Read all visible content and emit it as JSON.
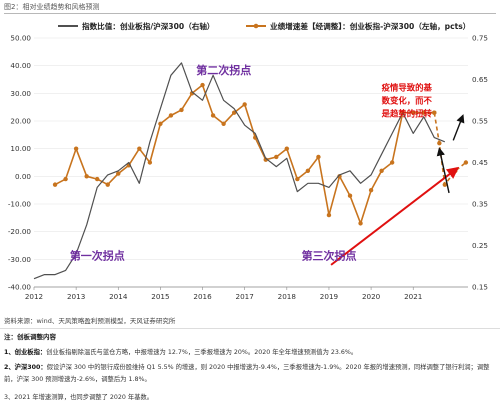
{
  "figure_title": "图2：相对业绩趋势和风格预测",
  "chart_data": {
    "type": "line",
    "legend": [
      {
        "name": "指数比值：创业板指/沪深300（右轴）",
        "color": "#505050"
      },
      {
        "name": "业绩增速差【经调整】：创业板指-沪深300（左轴，pcts）",
        "color": "#c8741e"
      }
    ],
    "legend_placement": "top",
    "left_axis": {
      "ylim": [
        -40,
        50
      ],
      "ticks": [
        "50.00",
        "40.00",
        "30.00",
        "20.00",
        "10.00",
        "0.00",
        "-10.00",
        "-20.00",
        "-30.00",
        "-40.00"
      ]
    },
    "right_axis": {
      "ylim": [
        0.15,
        0.75
      ],
      "ticks": [
        "0.75",
        "0.65",
        "0.55",
        "0.45",
        "0.35",
        "0.25",
        "0.15"
      ]
    },
    "x_axis": {
      "xlim": [
        2012,
        2022.3
      ],
      "ticks": [
        "2012",
        "2013",
        "2014",
        "2015",
        "2016",
        "2017",
        "2018",
        "2019",
        "2020",
        "2021"
      ]
    },
    "series": [
      {
        "name": "业绩增速差【经调整】：创业板指-沪深300（左轴，pcts）",
        "axis": "left",
        "color": "#c8741e",
        "x": [
          2012.5,
          2012.75,
          2013.0,
          2013.25,
          2013.5,
          2013.75,
          2014.0,
          2014.25,
          2014.5,
          2014.75,
          2015.0,
          2015.25,
          2015.5,
          2015.75,
          2016.0,
          2016.25,
          2016.5,
          2016.75,
          2017.0,
          2017.25,
          2017.5,
          2017.75,
          2018.0,
          2018.25,
          2018.5,
          2018.75,
          2019.0,
          2019.25,
          2019.5,
          2019.75,
          2020.0,
          2020.25,
          2020.5,
          2020.75,
          2021.0,
          2021.25,
          2021.5
        ],
        "y": [
          -3,
          -1,
          10,
          0,
          -1,
          -3,
          1,
          4,
          10,
          5,
          19,
          22,
          24,
          30,
          33,
          22,
          19,
          23,
          26,
          14,
          6,
          7,
          10,
          -1,
          2,
          7,
          -14,
          0,
          -7,
          -17,
          -5,
          2,
          5,
          23,
          23,
          23,
          23
        ]
      },
      {
        "name": "业绩增速差【经调整】：创业板指-沪深300（左轴，pcts）",
        "axis": "left",
        "color": "#c8741e",
        "dashed": true,
        "x": [
          2021.5,
          2021.62,
          2021.75,
          2022.0,
          2022.25
        ],
        "y": [
          23,
          12,
          -3,
          2,
          5
        ]
      },
      {
        "name": "指数比值：创业板指/沪深300（右轴）",
        "axis": "right",
        "color": "#505050",
        "x": [
          2012.0,
          2012.25,
          2012.5,
          2012.75,
          2013.0,
          2013.25,
          2013.5,
          2013.75,
          2014.0,
          2014.25,
          2014.5,
          2014.75,
          2015.0,
          2015.25,
          2015.5,
          2015.75,
          2016.0,
          2016.25,
          2016.5,
          2016.75,
          2017.0,
          2017.25,
          2017.5,
          2017.75,
          2018.0,
          2018.25,
          2018.5,
          2018.75,
          2019.0,
          2019.25,
          2019.5,
          2019.75,
          2020.0,
          2020.25,
          2020.5,
          2020.75,
          2021.0,
          2021.25,
          2021.5,
          2021.75
        ],
        "y": [
          0.17,
          0.18,
          0.18,
          0.19,
          0.23,
          0.3,
          0.39,
          0.42,
          0.43,
          0.45,
          0.4,
          0.5,
          0.58,
          0.66,
          0.69,
          0.62,
          0.6,
          0.66,
          0.6,
          0.58,
          0.54,
          0.52,
          0.46,
          0.44,
          0.46,
          0.38,
          0.4,
          0.4,
          0.39,
          0.42,
          0.43,
          0.4,
          0.42,
          0.47,
          0.52,
          0.57,
          0.52,
          0.56,
          0.51,
          0.5
        ]
      }
    ],
    "annotations": [
      {
        "text": "第一次拐点",
        "color": "#7030a0"
      },
      {
        "text": "第二次拐点",
        "color": "#7030a0"
      },
      {
        "text": "第三次拐点",
        "color": "#7030a0"
      },
      {
        "text": "疫情导致的基数变化，而不是趋势的扭转",
        "lines": [
          "疫情导致的基",
          "数变化，而不",
          "是趋势的扭转"
        ],
        "color": "#e01010"
      }
    ]
  },
  "source": "资料来源：wind、天风策略盈利预测模型，天风证券研究所",
  "notes_heading": "注：创板调整内容",
  "notes": [
    {
      "label": "1、创业板指：",
      "text": "创业板指剔除温氏与蓝仓方略，中报增速为 12.7%，三季报增速为 20%。2020 年全年增速预测值为 23.6%。"
    },
    {
      "label": "2、沪深300：",
      "text": "假设沪深 300 中的银行成份股维持 Q1 5.5% 的增速，则 2020 中报增速为-9.4%，三季报增速为-1.9%。2020 年报的增速预测，同样调整了银行利润；调整前，沪深 300 预测增速为-2.6%，调整后为 1.8%。"
    },
    {
      "label": "",
      "text": "3、2021 年增速测算，也同步调整了 2020 年基数。"
    }
  ]
}
